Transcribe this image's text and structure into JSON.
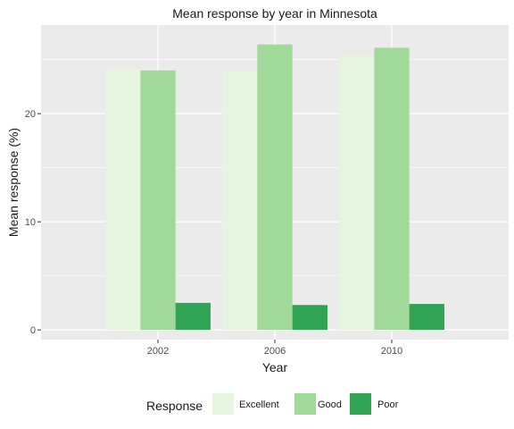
{
  "chart_data": {
    "type": "bar",
    "title": "Mean response by year in Minnesota",
    "xlabel": "Year",
    "ylabel": "Mean response (%)",
    "categories": [
      "2002",
      "2006",
      "2010"
    ],
    "series": [
      {
        "name": "Excellent",
        "values": [
          24.1,
          23.9,
          25.4
        ],
        "color": "#e5f5e0"
      },
      {
        "name": "Good",
        "values": [
          24.0,
          26.4,
          26.1
        ],
        "color": "#a1d99b"
      },
      {
        "name": "Poor",
        "values": [
          2.5,
          2.3,
          2.4
        ],
        "color": "#31a354"
      }
    ],
    "ylim": [
      -0.9,
      28.2
    ],
    "yticks": [
      0,
      10,
      20
    ],
    "grid": true,
    "legend": {
      "title": "Response",
      "position": "bottom"
    },
    "panel_background": "#ebebeb",
    "gridline_color": "#ffffff"
  }
}
